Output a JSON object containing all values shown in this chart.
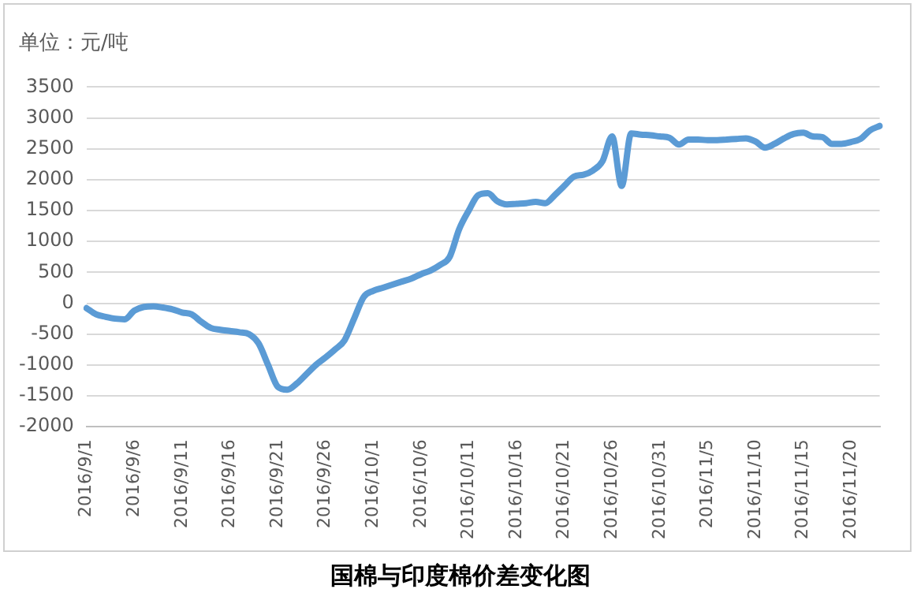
{
  "chart_data": {
    "type": "line",
    "title": "国棉与印度棉价差变化图",
    "ylabel": "单位：元/吨",
    "categories": [
      "2016/9/1",
      null,
      null,
      null,
      null,
      "2016/9/6",
      null,
      null,
      null,
      null,
      "2016/9/11",
      null,
      null,
      null,
      null,
      "2016/9/16",
      null,
      null,
      null,
      null,
      "2016/9/21",
      null,
      null,
      null,
      null,
      "2016/9/26",
      null,
      null,
      null,
      null,
      "2016/10/1",
      null,
      null,
      null,
      null,
      "2016/10/6",
      null,
      null,
      null,
      null,
      "2016/10/11",
      null,
      null,
      null,
      null,
      "2016/10/16",
      null,
      null,
      null,
      null,
      "2016/10/21",
      null,
      null,
      null,
      null,
      "2016/10/26",
      null,
      null,
      null,
      null,
      "2016/10/31",
      null,
      null,
      null,
      null,
      "2016/11/5",
      null,
      null,
      null,
      null,
      "2016/11/10",
      null,
      null,
      null,
      null,
      "2016/11/15",
      null,
      null,
      null,
      null,
      "2016/11/20",
      null,
      null,
      null
    ],
    "series": [
      {
        "color": "#5b9bd5",
        "values": [
          -80,
          -180,
          -220,
          -250,
          -260,
          -120,
          -60,
          -50,
          -70,
          -100,
          -150,
          -180,
          -300,
          -400,
          -430,
          -450,
          -470,
          -500,
          -650,
          -1000,
          -1350,
          -1400,
          -1300,
          -1150,
          -1000,
          -880,
          -750,
          -600,
          -250,
          100,
          200,
          250,
          300,
          350,
          400,
          470,
          530,
          620,
          750,
          1200,
          1500,
          1750,
          1780,
          1650,
          1600,
          1610,
          1620,
          1640,
          1620,
          1750,
          1900,
          2050,
          2080,
          2150,
          2300,
          2700,
          1900,
          2750,
          2730,
          2720,
          2700,
          2680,
          2570,
          2650,
          2650,
          2640,
          2640,
          2650,
          2660,
          2670,
          2620,
          2520,
          2580,
          2670,
          2740,
          2760,
          2700,
          2690,
          2580,
          2580,
          2610,
          2660,
          2800,
          2870
        ]
      }
    ],
    "ylim": [
      -2000,
      3500
    ],
    "yticks": [
      -2000,
      -1500,
      -1000,
      -500,
      0,
      500,
      1000,
      1500,
      2000,
      2500,
      3000,
      3500
    ],
    "grid": "y",
    "legend": false,
    "marker": "none",
    "line_style": "solid"
  }
}
